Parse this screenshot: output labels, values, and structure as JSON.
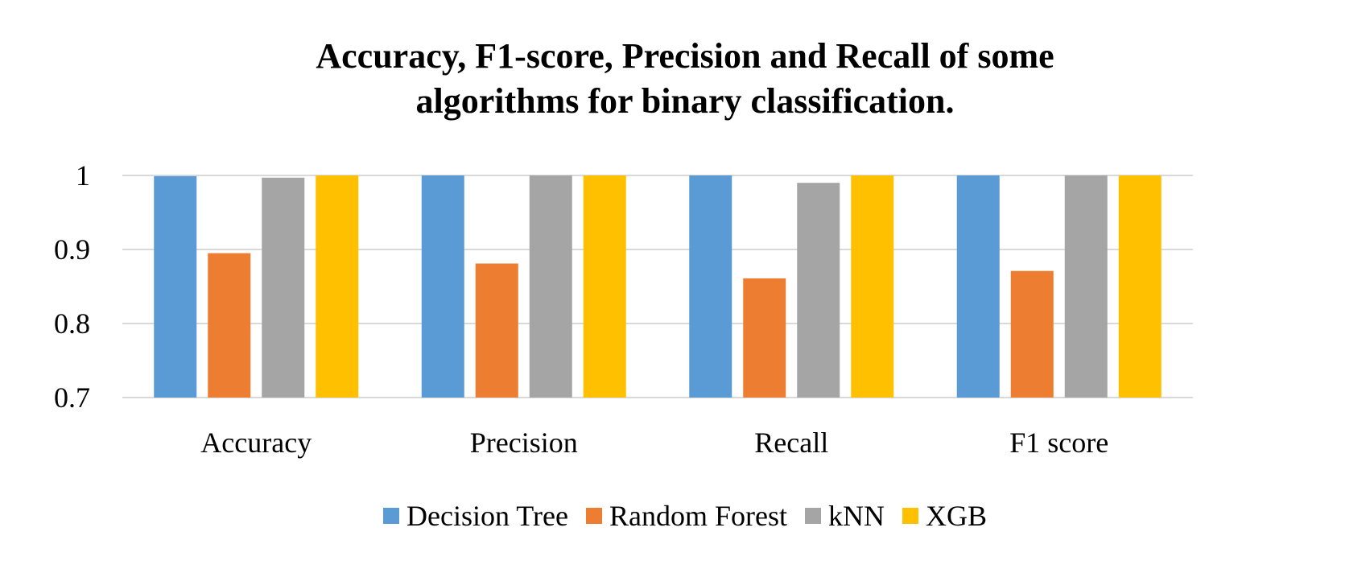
{
  "chart_data": {
    "type": "bar",
    "title": "Accuracy, F1-score, Precision and Recall of some algorithms for binary classification.",
    "title_lines": [
      "Accuracy, F1-score, Precision and Recall of some",
      "algorithms for binary classification."
    ],
    "categories": [
      "Accuracy",
      "Precision",
      "Recall",
      "F1 score"
    ],
    "series": [
      {
        "name": "Decision Tree",
        "color": "#5b9bd5",
        "values": [
          0.999,
          1.0,
          1.0,
          1.0
        ]
      },
      {
        "name": "Random Forest",
        "color": "#ed7d31",
        "values": [
          0.895,
          0.881,
          0.861,
          0.871
        ]
      },
      {
        "name": "kNN",
        "color": "#a5a5a5",
        "values": [
          0.997,
          1.0,
          0.99,
          1.0
        ]
      },
      {
        "name": "XGB",
        "color": "#ffc000",
        "values": [
          1.0,
          1.0,
          1.0,
          1.0
        ]
      }
    ],
    "ylim": [
      0.7,
      1.0
    ],
    "yticks": [
      0.7,
      0.8,
      0.9,
      1.0
    ],
    "ytick_labels": [
      "0.7",
      "0.8",
      "0.9",
      "1"
    ],
    "xlabel": "",
    "ylabel": "",
    "grid": true,
    "legend_position": "bottom"
  }
}
